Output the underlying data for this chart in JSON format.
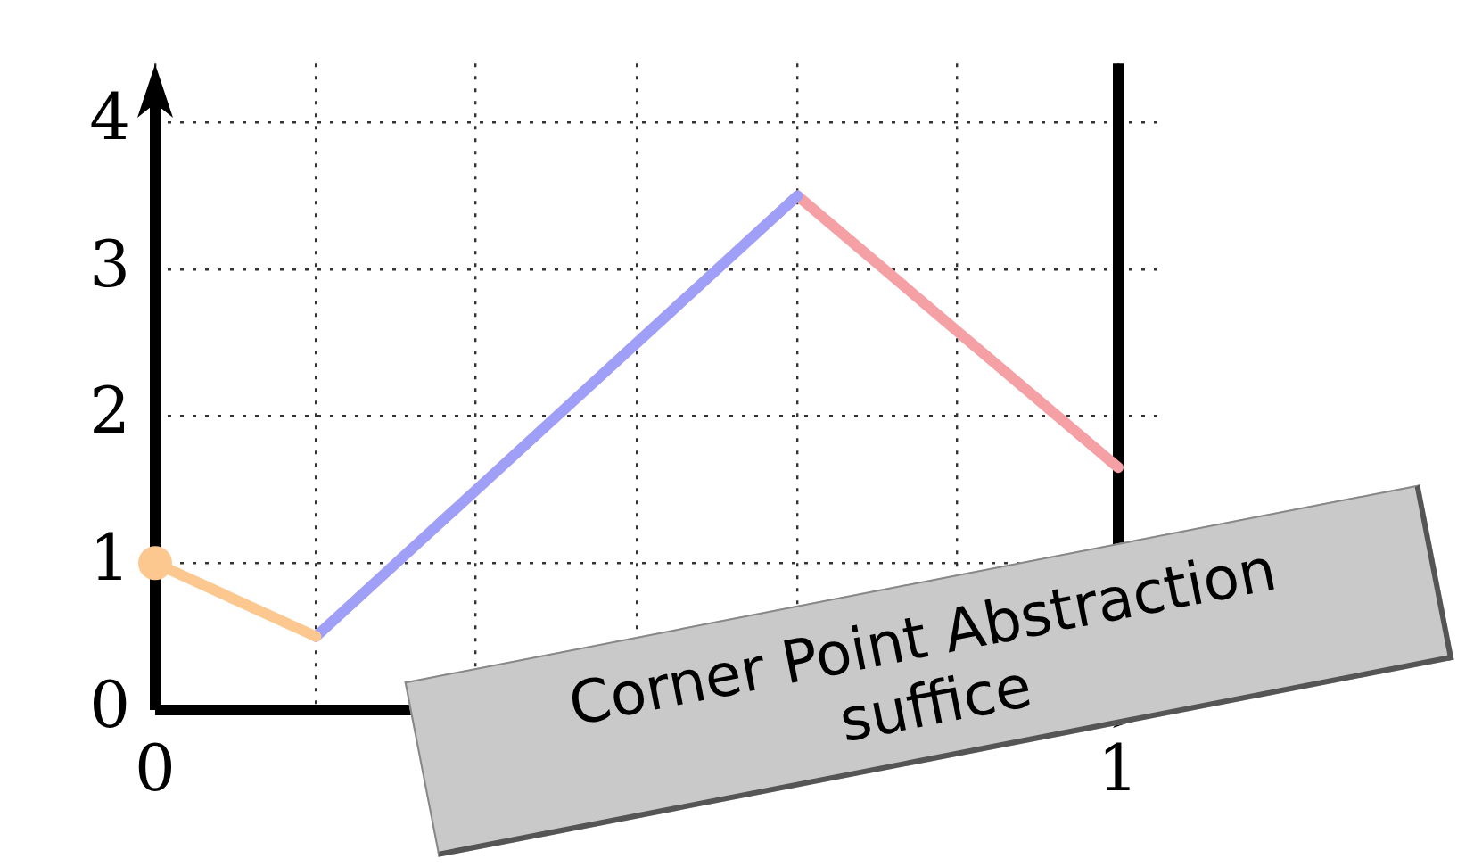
{
  "chart_data": {
    "type": "line",
    "xlim": [
      0,
      1.05
    ],
    "ylim": [
      0,
      4.4
    ],
    "xticks": [
      0,
      {
        "value": 0.167,
        "label": null
      },
      {
        "value": 0.333,
        "label": null
      },
      {
        "value": 0.5,
        "label": null
      },
      {
        "value": 0.667,
        "label": null
      },
      {
        "value": 0.833,
        "label": null
      },
      1
    ],
    "yticks": [
      0,
      1,
      2,
      3,
      4
    ],
    "grid": true,
    "legend": false,
    "line_style": "solid",
    "series": [
      {
        "color": "#fcc88f",
        "x": [
          0,
          0.167
        ],
        "values": [
          1,
          0.5
        ]
      },
      {
        "color": "#9f9ff8",
        "x": [
          0.167,
          0.667
        ],
        "values": [
          0.5,
          3.5
        ]
      },
      {
        "color": "#f5a0a5",
        "x": [
          0.667,
          1
        ],
        "values": [
          3.5,
          1.65
        ]
      },
      {
        "type": "scatter",
        "marker": "circle",
        "color": "#fcc88f",
        "x": [
          0
        ],
        "values": [
          1
        ]
      }
    ],
    "ref_lines": [
      {
        "axis": "x",
        "value": 1,
        "color": "#000000",
        "line_style": "solid"
      }
    ],
    "annotations": [
      "Corner Point Abstraction\nsuffice"
    ]
  }
}
